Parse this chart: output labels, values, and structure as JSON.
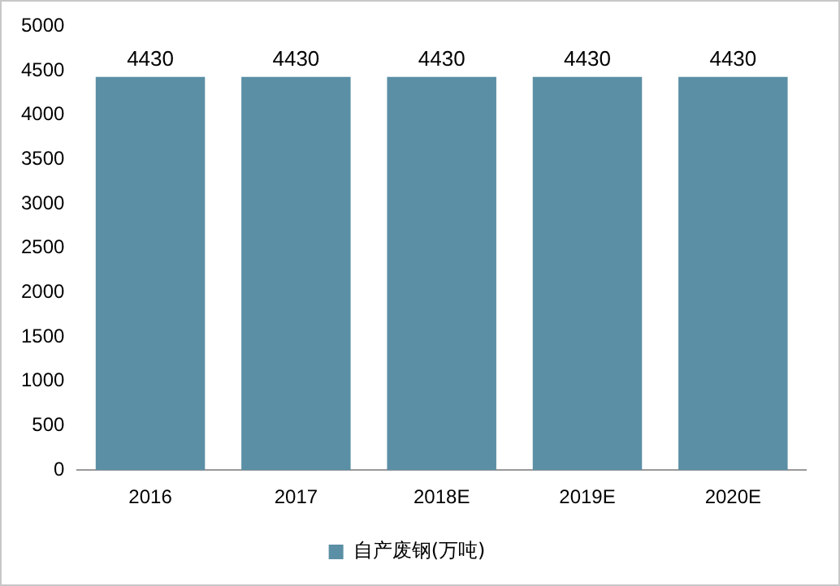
{
  "chart_data": {
    "type": "bar",
    "categories": [
      "2016",
      "2017",
      "2018E",
      "2019E",
      "2020E"
    ],
    "series": [
      {
        "name": "自产废钢(万吨)",
        "color": "#5b8fa5",
        "values": [
          4430,
          4430,
          4430,
          4430,
          4430
        ]
      }
    ],
    "ylim": [
      0,
      5000
    ],
    "yticks": [
      0,
      500,
      1000,
      1500,
      2000,
      2500,
      3000,
      3500,
      4000,
      4500,
      5000
    ],
    "grid": false,
    "legend": "bottom",
    "data_labels": true
  }
}
